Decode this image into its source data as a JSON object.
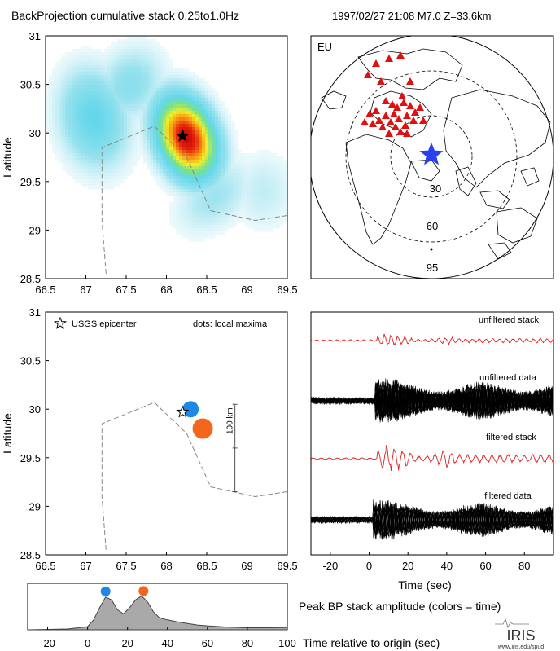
{
  "header": {
    "left_title": "BackProjection cumulative stack 0.25to1.0Hz",
    "right_title": "1997/02/27 21:08   M7.0  Z=33.6km"
  },
  "chart_data": [
    {
      "type": "heatmap",
      "ylabel": "Latitude",
      "xlim": [
        66.5,
        69.5
      ],
      "ylim": [
        28.5,
        31
      ],
      "xticks": [
        "66.5",
        "67",
        "67.5",
        "68",
        "68.5",
        "69",
        "69.5"
      ],
      "yticks": [
        "28.5",
        "29",
        "29.5",
        "30",
        "30.5",
        "31"
      ],
      "blobs": [
        {
          "x": 68.25,
          "y": 29.95,
          "sx": 0.22,
          "sy": 0.3,
          "angle": -35,
          "amp": 1.0
        },
        {
          "x": 67.1,
          "y": 30.15,
          "sx": 0.28,
          "sy": 0.35,
          "angle": -20,
          "amp": 0.3
        },
        {
          "x": 67.55,
          "y": 30.5,
          "sx": 0.3,
          "sy": 0.25,
          "angle": -30,
          "amp": 0.18
        },
        {
          "x": 68.6,
          "y": 29.35,
          "sx": 0.35,
          "sy": 0.22,
          "angle": -30,
          "amp": 0.14
        },
        {
          "x": 69.2,
          "y": 29.4,
          "sx": 0.28,
          "sy": 0.28,
          "angle": 0,
          "amp": 0.09
        }
      ],
      "border": [
        [
          67.25,
          28.55
        ],
        [
          67.2,
          29.1
        ],
        [
          67.2,
          29.85
        ],
        [
          67.85,
          30.07
        ],
        [
          68.25,
          29.75
        ],
        [
          68.55,
          29.2
        ],
        [
          69.1,
          29.1
        ],
        [
          69.5,
          29.15
        ]
      ],
      "epicenter": {
        "x": 68.2,
        "y": 29.97
      }
    },
    {
      "type": "scatter",
      "ylabel": "Latitude",
      "xlim": [
        66.5,
        69.5
      ],
      "ylim": [
        28.5,
        31
      ],
      "xticks": [
        "66.5",
        "67",
        "67.5",
        "68",
        "68.5",
        "69",
        "69.5"
      ],
      "yticks": [
        "28.5",
        "29",
        "29.5",
        "30",
        "30.5",
        "31"
      ],
      "legend_epicenter": "USGS epicenter",
      "legend_dots": "dots: local maxima",
      "scale_label": "100 km",
      "scale_bar": {
        "x": 68.85,
        "y0": 29.15,
        "y1": 30.05
      },
      "points": [
        {
          "x": 68.3,
          "y": 30.0,
          "size": 1.0,
          "color": "#1e88e5"
        },
        {
          "x": 68.45,
          "y": 29.8,
          "size": 1.25,
          "color": "#f4661b"
        }
      ],
      "border": [
        [
          67.25,
          28.55
        ],
        [
          67.2,
          29.1
        ],
        [
          67.2,
          29.85
        ],
        [
          67.85,
          30.07
        ],
        [
          68.25,
          29.75
        ],
        [
          68.55,
          29.2
        ],
        [
          69.1,
          29.1
        ],
        [
          69.5,
          29.15
        ]
      ],
      "epicenter": {
        "x": 68.2,
        "y": 29.97
      }
    },
    {
      "type": "line",
      "xlabel": "Time (sec)",
      "xlim": [
        -30,
        95
      ],
      "xticks": [
        "-20",
        "0",
        "20",
        "40",
        "60",
        "80"
      ],
      "traces": [
        {
          "name": "unfiltered stack",
          "kind": "stack",
          "color": "#e02020",
          "onset": 4,
          "freq": 0.6,
          "amp": 0.5,
          "decay": 0.02
        },
        {
          "name": "unfiltered data",
          "kind": "data",
          "color": "#000000",
          "onset": 3,
          "freq": 1.1,
          "amp": 1.0,
          "decay": 0.0
        },
        {
          "name": "filtered stack",
          "kind": "stack",
          "color": "#e02020",
          "onset": 4,
          "freq": 0.5,
          "amp": 0.9,
          "decay": 0.01
        },
        {
          "name": "filtered data",
          "kind": "data",
          "color": "#000000",
          "onset": 2,
          "freq": 1.0,
          "amp": 0.9,
          "decay": 0.0
        }
      ]
    },
    {
      "type": "area",
      "title": "Peak BP stack amplitude (colors = time)",
      "xlabel": "Time relative to origin (sec)",
      "xlim": [
        -30,
        100
      ],
      "ylim": [
        0,
        1
      ],
      "xticks": [
        "-20",
        "0",
        "20",
        "40",
        "60",
        "80",
        "100"
      ],
      "x": [
        -30,
        -10,
        0,
        3,
        6,
        9,
        12,
        15,
        18,
        21,
        24,
        27,
        30,
        33,
        36,
        40,
        45,
        50,
        55,
        60,
        70,
        80,
        90,
        100
      ],
      "y": [
        0.0,
        0.02,
        0.08,
        0.25,
        0.55,
        0.82,
        0.75,
        0.5,
        0.4,
        0.55,
        0.75,
        0.85,
        0.7,
        0.45,
        0.3,
        0.25,
        0.2,
        0.16,
        0.12,
        0.1,
        0.07,
        0.05,
        0.05,
        0.06
      ],
      "markers": [
        {
          "x": 9,
          "y": 0.92,
          "color": "#1e88e5"
        },
        {
          "x": 28,
          "y": 0.93,
          "color": "#f4661b"
        }
      ]
    }
  ],
  "globe": {
    "region_label": "EU",
    "ring_labels": [
      "30",
      "60",
      "95"
    ],
    "station_color": "#e01010",
    "event_color": "#2a3ff0"
  },
  "logo": {
    "text": "IRIS",
    "url_text": "www.iris.edu/spud"
  }
}
